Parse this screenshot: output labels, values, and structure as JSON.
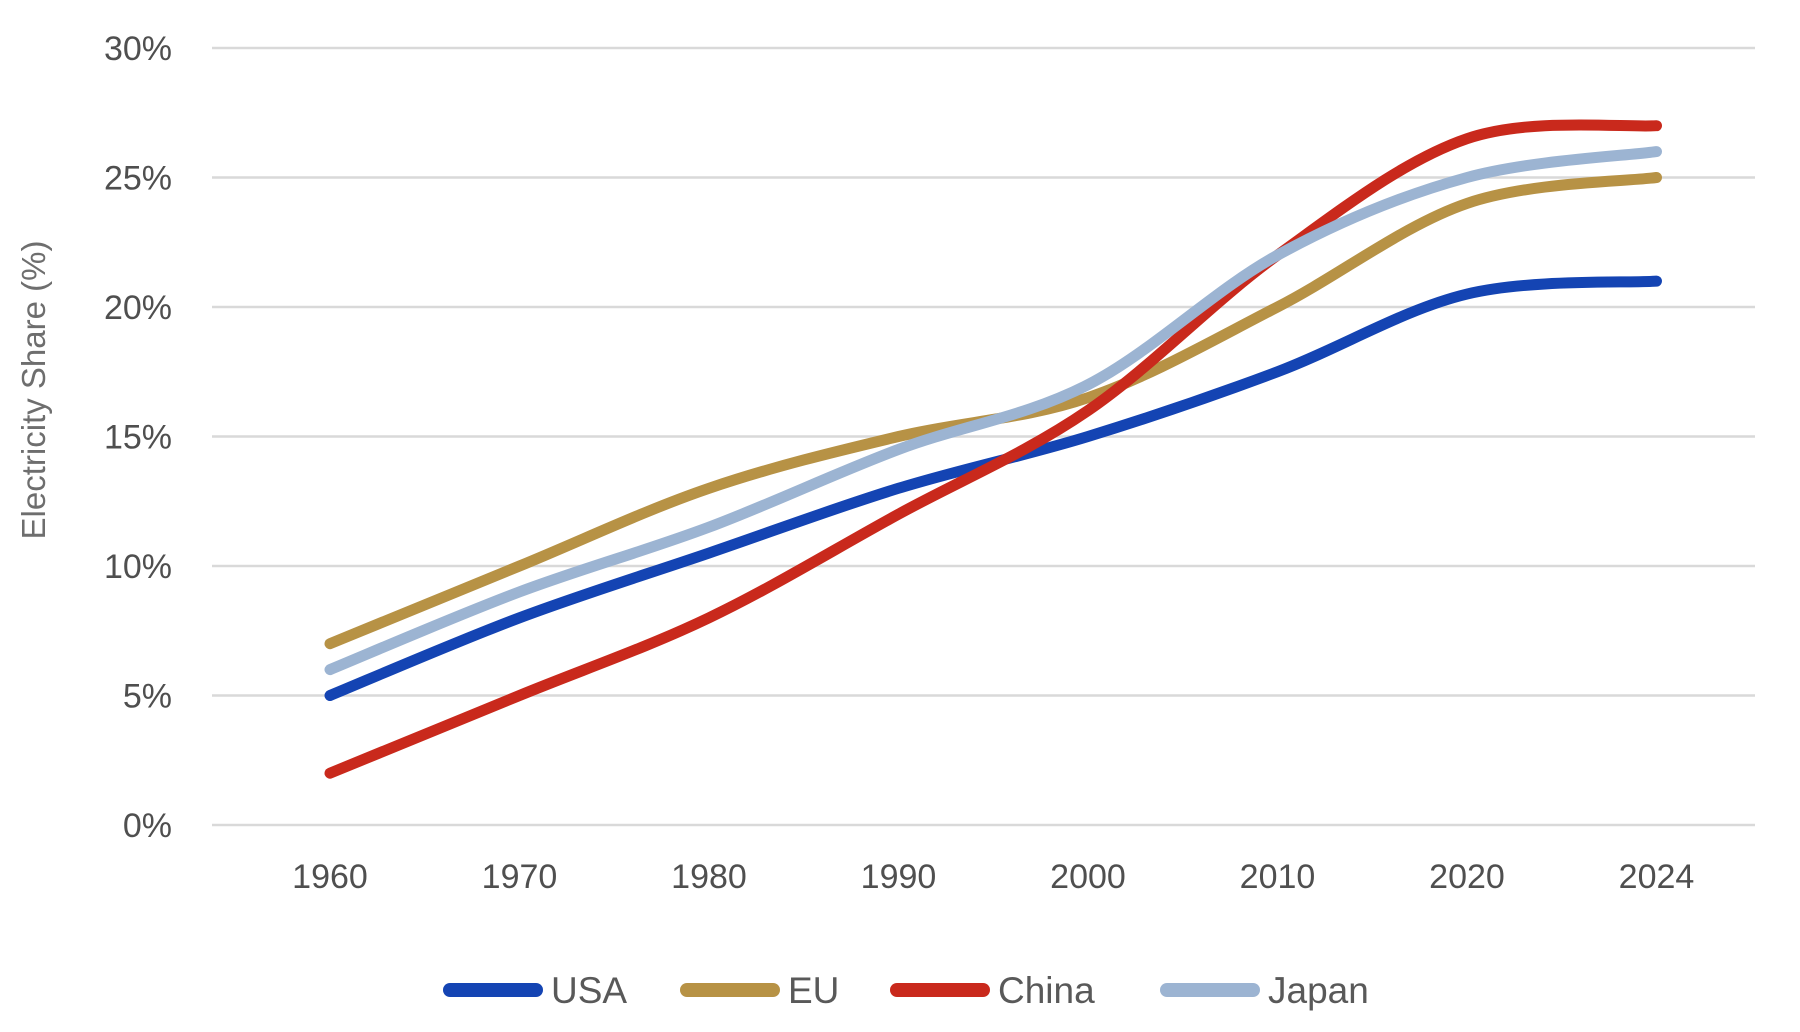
{
  "chart_data": {
    "type": "line",
    "title": "",
    "xlabel": "",
    "ylabel": "Electricity Share (%)",
    "categories": [
      "1960",
      "1970",
      "1980",
      "1990",
      "2000",
      "2010",
      "2020",
      "2024"
    ],
    "y_ticks": [
      "0%",
      "5%",
      "10%",
      "15%",
      "20%",
      "25%",
      "30%"
    ],
    "ylim": [
      0,
      30
    ],
    "grid": "horizontal-only",
    "legend_position": "bottom-center",
    "series": [
      {
        "name": "USA",
        "color": "#1444b3",
        "values": [
          5,
          8,
          10.5,
          13,
          15,
          17.5,
          20.5,
          21
        ]
      },
      {
        "name": "EU",
        "color": "#b79245",
        "values": [
          7,
          10,
          13,
          15,
          16.5,
          20,
          24,
          25
        ]
      },
      {
        "name": "China",
        "color": "#c9291c",
        "values": [
          2,
          5,
          8,
          12,
          16,
          22,
          26.5,
          27
        ]
      },
      {
        "name": "Japan",
        "color": "#9cb4d2",
        "values": [
          6,
          9,
          11.5,
          14.5,
          17,
          22,
          25,
          26
        ]
      }
    ]
  },
  "style_colors": {
    "gridline": "#d9d9d9",
    "tick_label": "#4f4f4f",
    "axis_title": "#6e6e6e",
    "legend_label": "#595959",
    "background": "#ffffff"
  }
}
